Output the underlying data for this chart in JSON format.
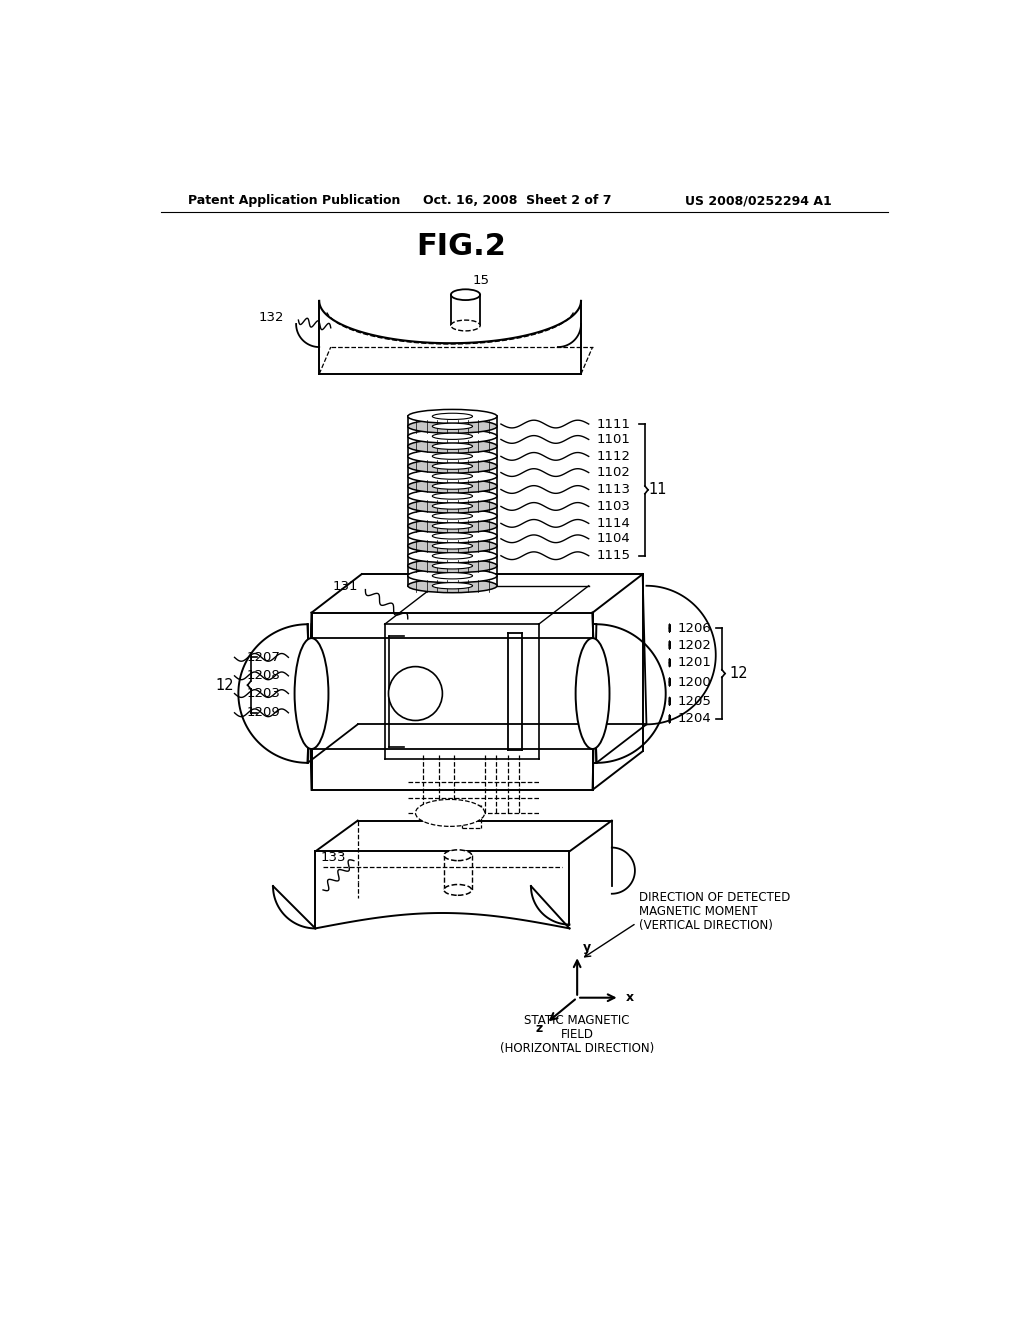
{
  "title": "FIG.2",
  "header_left": "Patent Application Publication",
  "header_mid": "Oct. 16, 2008  Sheet 2 of 7",
  "header_right": "US 2008/0252294 A1",
  "bg_color": "#ffffff",
  "line_color": "#000000",
  "label_fontsize": 9.5,
  "title_fontsize": 22,
  "header_fontsize": 9,
  "coil_labels": [
    "1111",
    "1101",
    "1112",
    "1102",
    "1113",
    "1103",
    "1114",
    "1104",
    "1115"
  ],
  "right_box_labels": [
    "1206",
    "1202",
    "1201",
    "1200",
    "1205",
    "1204"
  ],
  "left_box_labels": [
    "1207",
    "1208",
    "1203",
    "1209"
  ]
}
